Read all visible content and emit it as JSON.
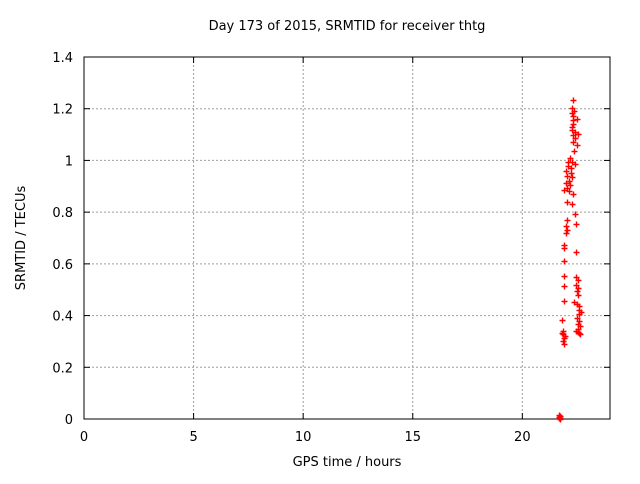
{
  "chart_data": {
    "type": "scatter",
    "title": "Day 173 of 2015, SRMTID for receiver thtg",
    "xlabel": "GPS time / hours",
    "ylabel": "SRMTID / TECUs",
    "xlim": [
      0,
      24
    ],
    "ylim": [
      0,
      1.4
    ],
    "xticks": [
      0,
      5,
      10,
      15,
      20
    ],
    "yticks": [
      0,
      0.2,
      0.4,
      0.6,
      0.8,
      1,
      1.2,
      1.4
    ],
    "grid": true,
    "legend_position": "none",
    "marker": "plus",
    "marker_color": "#ff0000",
    "grid_color": "#9e9e9e",
    "axis_color": "#000000",
    "background_color": "#ffffff",
    "series": [
      {
        "name": "SRMTID",
        "points": [
          [
            22.33,
            1.234
          ],
          [
            22.28,
            1.203
          ],
          [
            22.34,
            1.193
          ],
          [
            22.28,
            1.182
          ],
          [
            22.32,
            1.17
          ],
          [
            22.49,
            1.16
          ],
          [
            22.3,
            1.155
          ],
          [
            22.32,
            1.141
          ],
          [
            22.28,
            1.13
          ],
          [
            22.26,
            1.116
          ],
          [
            22.4,
            1.11
          ],
          [
            22.55,
            1.102
          ],
          [
            22.3,
            1.097
          ],
          [
            22.42,
            1.085
          ],
          [
            22.3,
            1.071
          ],
          [
            22.49,
            1.058
          ],
          [
            22.34,
            1.037
          ],
          [
            22.19,
            1.011
          ],
          [
            22.08,
            0.994
          ],
          [
            22.27,
            0.992
          ],
          [
            22.39,
            0.986
          ],
          [
            22.1,
            0.978
          ],
          [
            22.24,
            0.971
          ],
          [
            22.0,
            0.961
          ],
          [
            22.21,
            0.951
          ],
          [
            22.05,
            0.94
          ],
          [
            22.27,
            0.934
          ],
          [
            22.12,
            0.922
          ],
          [
            21.98,
            0.913
          ],
          [
            22.16,
            0.905
          ],
          [
            22.05,
            0.895
          ],
          [
            21.89,
            0.885
          ],
          [
            22.12,
            0.88
          ],
          [
            22.32,
            0.872
          ],
          [
            22.03,
            0.839
          ],
          [
            22.25,
            0.833
          ],
          [
            22.39,
            0.792
          ],
          [
            22.05,
            0.769
          ],
          [
            22.46,
            0.754
          ],
          [
            21.98,
            0.746
          ],
          [
            22.05,
            0.732
          ],
          [
            21.98,
            0.719
          ],
          [
            21.91,
            0.672
          ],
          [
            21.91,
            0.663
          ],
          [
            22.46,
            0.645
          ],
          [
            21.91,
            0.61
          ],
          [
            21.91,
            0.552
          ],
          [
            22.44,
            0.548
          ],
          [
            22.53,
            0.539
          ],
          [
            22.44,
            0.517
          ],
          [
            21.91,
            0.513
          ],
          [
            22.55,
            0.506
          ],
          [
            22.49,
            0.496
          ],
          [
            22.53,
            0.48
          ],
          [
            21.91,
            0.457
          ],
          [
            22.37,
            0.451
          ],
          [
            22.51,
            0.444
          ],
          [
            22.57,
            0.436
          ],
          [
            22.57,
            0.42
          ],
          [
            22.67,
            0.415
          ],
          [
            22.6,
            0.407
          ],
          [
            22.51,
            0.391
          ],
          [
            21.82,
            0.384
          ],
          [
            22.57,
            0.38
          ],
          [
            22.53,
            0.368
          ],
          [
            22.62,
            0.358
          ],
          [
            22.53,
            0.349
          ],
          [
            21.87,
            0.341
          ],
          [
            22.46,
            0.339
          ],
          [
            22.55,
            0.337
          ],
          [
            21.82,
            0.333
          ],
          [
            22.57,
            0.333
          ],
          [
            21.84,
            0.327
          ],
          [
            22.64,
            0.327
          ],
          [
            21.93,
            0.32
          ],
          [
            21.89,
            0.314
          ],
          [
            21.84,
            0.302
          ],
          [
            21.89,
            0.289
          ],
          [
            21.67,
            0.015
          ],
          [
            21.73,
            0.012
          ],
          [
            21.68,
            0.008
          ],
          [
            21.71,
            0.005
          ],
          [
            21.69,
            0.002
          ],
          [
            21.72,
            0.0
          ]
        ]
      }
    ]
  }
}
